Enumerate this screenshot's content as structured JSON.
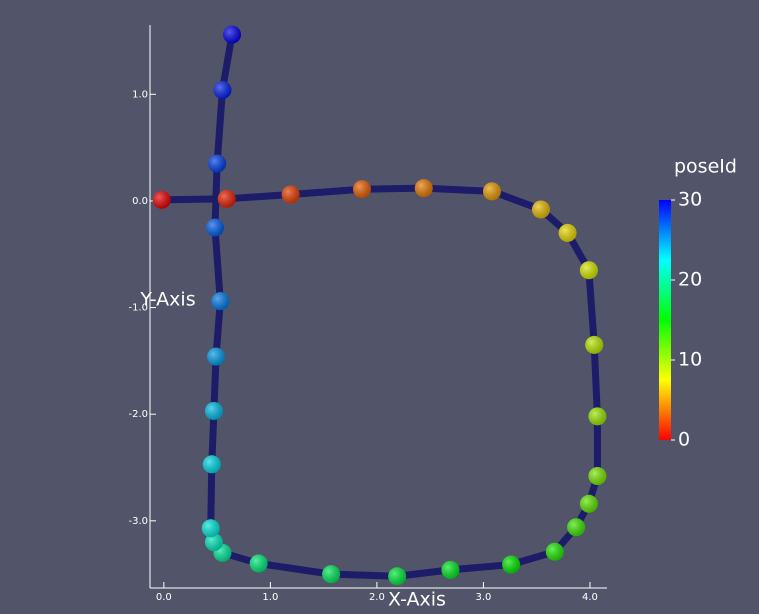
{
  "chart_data": {
    "type": "line",
    "x_label": "X-Axis",
    "y_label": "Y-Axis",
    "x": [
      -0.02,
      0.59,
      1.19,
      1.86,
      2.44,
      3.08,
      3.54,
      3.79,
      3.99,
      4.04,
      4.07,
      4.07,
      3.99,
      3.87,
      3.67,
      3.26,
      2.69,
      2.19,
      1.57,
      0.89,
      0.55,
      0.47,
      0.44,
      0.45,
      0.47,
      0.49,
      0.53,
      0.48,
      0.5,
      0.55,
      0.64
    ],
    "values": [
      0.01,
      0.02,
      0.06,
      0.11,
      0.12,
      0.09,
      -0.08,
      -0.3,
      -0.65,
      -1.35,
      -2.02,
      -2.58,
      -2.84,
      -3.06,
      -3.29,
      -3.41,
      -3.46,
      -3.52,
      -3.5,
      -3.4,
      -3.3,
      -3.2,
      -3.07,
      -2.47,
      -1.97,
      -1.46,
      -0.94,
      -0.25,
      0.35,
      1.04,
      1.56
    ],
    "color_values": [
      0,
      1,
      2,
      3,
      4,
      5,
      6,
      7,
      8,
      9,
      10,
      11,
      12,
      13,
      14,
      15,
      16,
      17,
      18,
      19,
      20,
      21,
      22,
      23,
      24,
      25,
      26,
      27,
      28,
      29,
      30
    ],
    "line_color": "#1c1c68",
    "xlim": [
      -0.13,
      4.16
    ],
    "ylim": [
      -3.63,
      1.65
    ],
    "xticks": [
      {
        "value": 0,
        "label": "0.0"
      },
      {
        "value": 1,
        "label": "1.0"
      },
      {
        "value": 2,
        "label": "2.0"
      },
      {
        "value": 3,
        "label": "3.0"
      },
      {
        "value": 4,
        "label": "4.0"
      }
    ],
    "yticks": [
      {
        "value": 1,
        "label": "1.0"
      },
      {
        "value": 0,
        "label": "0.0"
      },
      {
        "value": -1,
        "label": "-1.0"
      },
      {
        "value": -2,
        "label": "-2.0"
      },
      {
        "value": -3,
        "label": "-3.0"
      }
    ],
    "colorbar": {
      "title": "poseId",
      "lim": [
        0,
        30
      ],
      "ticks": [
        0,
        10,
        20,
        30
      ]
    }
  }
}
